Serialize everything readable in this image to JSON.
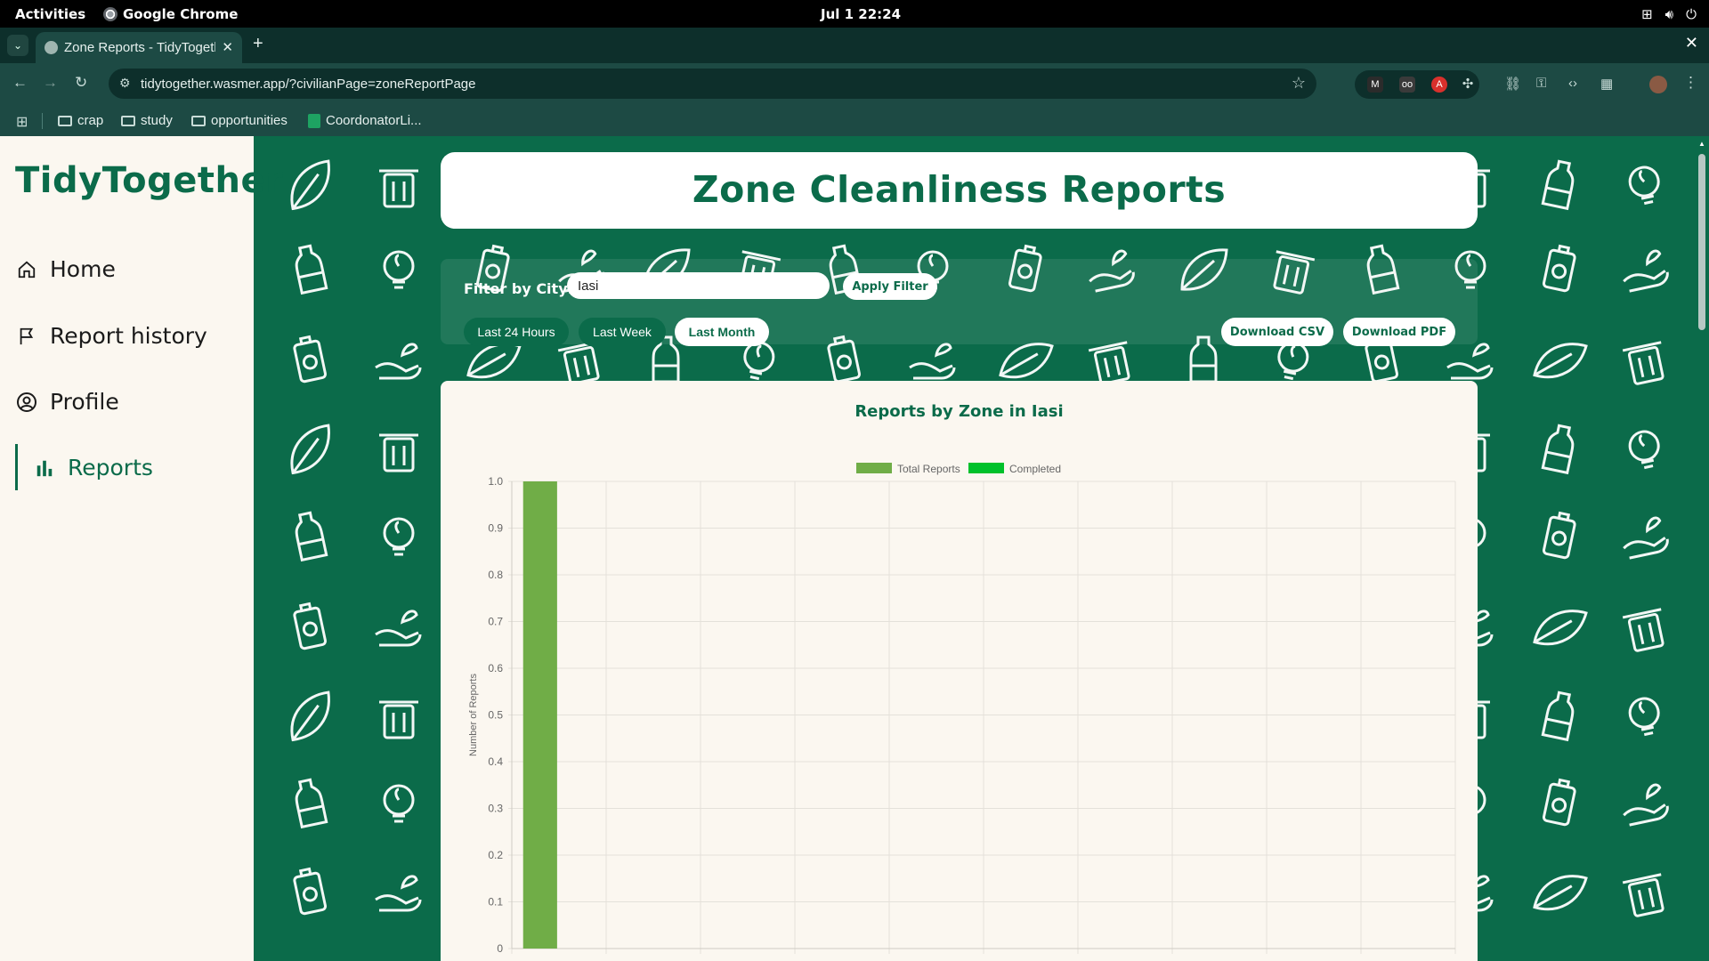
{
  "os_bar": {
    "activities": "Activities",
    "app_name": "Google Chrome",
    "clock": "Jul 1  22:24"
  },
  "browser": {
    "tab_title": "Zone Reports - TidyTogether",
    "url": "tidytogether.wasmer.app/?civilianPage=zoneReportPage",
    "bookmarks": [
      {
        "label": "crap",
        "icon": "folder-icon"
      },
      {
        "label": "study",
        "icon": "folder-icon"
      },
      {
        "label": "opportunities",
        "icon": "folder-icon"
      },
      {
        "label": "CoordonatorLi...",
        "icon": "sheets-icon"
      }
    ]
  },
  "sidebar": {
    "brand": "TidyTogether",
    "items": [
      {
        "label": "Home",
        "icon": "home-icon"
      },
      {
        "label": "Report history",
        "icon": "flag-icon"
      },
      {
        "label": "Profile",
        "icon": "user-circle-icon"
      },
      {
        "label": "Reports",
        "icon": "bar-chart-icon",
        "active": true
      }
    ]
  },
  "main": {
    "title": "Zone Cleanliness Reports",
    "filter": {
      "label": "Filter by City:",
      "city_value": "Iasi",
      "apply_label": "Apply Filter"
    },
    "ranges": [
      "Last 24 Hours",
      "Last Week",
      "Last Month"
    ],
    "selected_range": "Last Month",
    "download_csv": "Download CSV",
    "download_pdf": "Download PDF"
  },
  "colors": {
    "brand_green": "#0b6b4a",
    "total_bar": "#70ad47",
    "completed_bar": "#00c12b"
  },
  "chart_data": {
    "type": "bar",
    "title": "Reports by Zone in Iasi",
    "ylabel": "Number of Reports",
    "xlabel": "",
    "ylim": [
      0,
      1.0
    ],
    "yticks": [
      "0",
      "0.1",
      "0.2",
      "0.3",
      "0.4",
      "0.5",
      "0.6",
      "0.7",
      "0.8",
      "0.9",
      "1.0"
    ],
    "category_count": 10,
    "categories": [
      "",
      "",
      "",
      "",
      "",
      "",
      "",
      "",
      "",
      ""
    ],
    "series": [
      {
        "name": "Total Reports",
        "values": [
          1,
          0,
          0,
          0,
          0,
          0,
          0,
          0,
          0,
          0
        ]
      },
      {
        "name": "Completed",
        "values": [
          0,
          0,
          0,
          0,
          0,
          0,
          0,
          0,
          0,
          0
        ]
      }
    ],
    "legend": "top-center",
    "grid": true
  }
}
